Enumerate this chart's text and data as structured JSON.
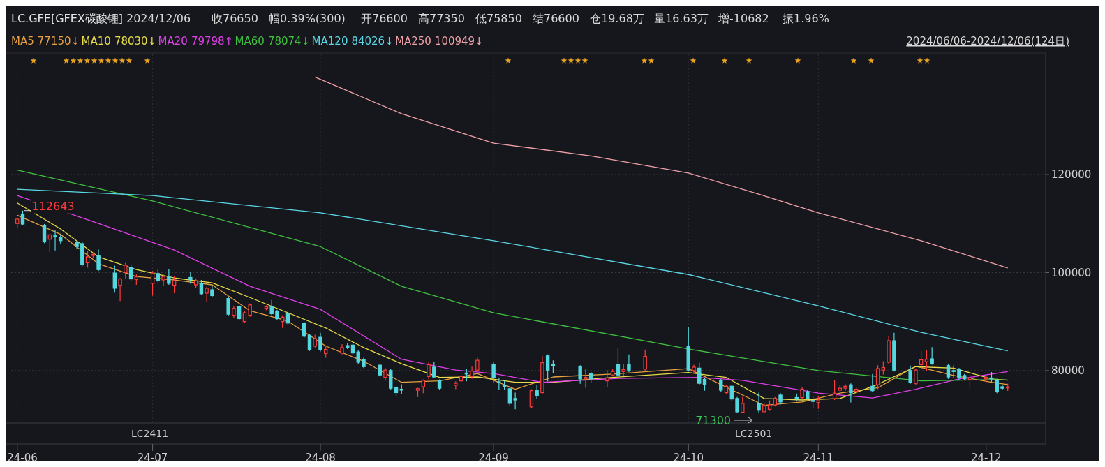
{
  "chart_data": {
    "type": "candlestick",
    "title": "LC.GFE[GFEX碳酸锂]",
    "annotations": [
      "2024/12/06",
      "收76650",
      "幅0.39%(300)",
      "开76600",
      "高77350",
      "低75850",
      "结76600",
      "仓19.68万",
      "量16.63万",
      "增-10682",
      "振1.96%",
      {
        "text": "112643",
        "x": "2024-06-07",
        "y": 112643
      },
      {
        "text": "71300",
        "x": "2024-10-21",
        "y": 71300
      },
      "2024/06/06-2024/12/06(124日)",
      "LC2411",
      "LC2501"
    ],
    "x": [
      "2024-06-06",
      "2024-06-07",
      "2024-06-11",
      "2024-06-12",
      "2024-06-13",
      "2024-06-14",
      "2024-06-17",
      "2024-06-18",
      "2024-06-19",
      "2024-06-20",
      "2024-06-21",
      "2024-06-24",
      "2024-06-25",
      "2024-06-26",
      "2024-06-27",
      "2024-06-28",
      "2024-07-01",
      "2024-07-02",
      "2024-07-03",
      "2024-07-04",
      "2024-07-05",
      "2024-07-08",
      "2024-07-09",
      "2024-07-10",
      "2024-07-11",
      "2024-07-12",
      "2024-07-15",
      "2024-07-16",
      "2024-07-17",
      "2024-07-18",
      "2024-07-19",
      "2024-07-22",
      "2024-07-23",
      "2024-07-24",
      "2024-07-25",
      "2024-07-26",
      "2024-07-29",
      "2024-07-30",
      "2024-07-31",
      "2024-08-01",
      "2024-08-02",
      "2024-08-05",
      "2024-08-06",
      "2024-08-07",
      "2024-08-08",
      "2024-08-09",
      "2024-08-12",
      "2024-08-13",
      "2024-08-14",
      "2024-08-15",
      "2024-08-16",
      "2024-08-19",
      "2024-08-20",
      "2024-08-21",
      "2024-08-22",
      "2024-08-23",
      "2024-08-26",
      "2024-08-27",
      "2024-08-28",
      "2024-08-29",
      "2024-08-30",
      "2024-09-02",
      "2024-09-03",
      "2024-09-04",
      "2024-09-05",
      "2024-09-06",
      "2024-09-09",
      "2024-09-10",
      "2024-09-11",
      "2024-09-12",
      "2024-09-13",
      "2024-09-18",
      "2024-09-19",
      "2024-09-20",
      "2024-09-23",
      "2024-09-24",
      "2024-09-25",
      "2024-09-26",
      "2024-09-27",
      "2024-09-30",
      "2024-10-08",
      "2024-10-09",
      "2024-10-10",
      "2024-10-11",
      "2024-10-14",
      "2024-10-15",
      "2024-10-16",
      "2024-10-17",
      "2024-10-18",
      "2024-10-21",
      "2024-10-22",
      "2024-10-23",
      "2024-10-24",
      "2024-10-25",
      "2024-10-28",
      "2024-10-29",
      "2024-10-30",
      "2024-10-31",
      "2024-11-01",
      "2024-11-04",
      "2024-11-05",
      "2024-11-06",
      "2024-11-07",
      "2024-11-08",
      "2024-11-11",
      "2024-11-12",
      "2024-11-13",
      "2024-11-14",
      "2024-11-15",
      "2024-11-18",
      "2024-11-19",
      "2024-11-20",
      "2024-11-21",
      "2024-11-22",
      "2024-11-25",
      "2024-11-26",
      "2024-11-27",
      "2024-11-28",
      "2024-11-29",
      "2024-12-02",
      "2024-12-03",
      "2024-12-04",
      "2024-12-05",
      "2024-12-06"
    ],
    "ohlc": [
      [
        110000,
        111200,
        109000,
        110900
      ],
      [
        111900,
        112643,
        109600,
        109900
      ],
      [
        109600,
        109900,
        106000,
        106300
      ],
      [
        106800,
        107900,
        104200,
        107700
      ],
      [
        107500,
        108700,
        104500,
        107300
      ],
      [
        107200,
        107600,
        105900,
        106500
      ],
      [
        106100,
        106400,
        104900,
        105300
      ],
      [
        105900,
        106200,
        101300,
        101700
      ],
      [
        102000,
        104300,
        101000,
        103200
      ],
      [
        103500,
        104000,
        103000,
        103700
      ],
      [
        103500,
        104700,
        100300,
        100600
      ],
      [
        99900,
        101400,
        95900,
        96800
      ],
      [
        97400,
        98900,
        94200,
        98700
      ],
      [
        100000,
        102000,
        98700,
        101500
      ],
      [
        101100,
        101700,
        98200,
        98700
      ],
      [
        98600,
        99700,
        97500,
        99100
      ],
      [
        97800,
        100300,
        95300,
        99900
      ],
      [
        99800,
        100700,
        98000,
        98300
      ],
      [
        98500,
        99600,
        97200,
        99200
      ],
      [
        99100,
        100700,
        97500,
        97800
      ],
      [
        97400,
        99300,
        95800,
        98300
      ],
      [
        99000,
        100200,
        97700,
        98600
      ],
      [
        97500,
        98800,
        96900,
        98300
      ],
      [
        97800,
        98500,
        95400,
        95700
      ],
      [
        95800,
        97100,
        94000,
        96800
      ],
      [
        96500,
        97300,
        95000,
        95300
      ],
      [
        94700,
        95000,
        91200,
        91500
      ],
      [
        91300,
        93200,
        90700,
        92700
      ],
      [
        93000,
        93300,
        90300,
        90600
      ],
      [
        90000,
        92200,
        89700,
        91800
      ],
      [
        91300,
        93700,
        91000,
        93400
      ],
      [
        92700,
        93300,
        92300,
        93000
      ],
      [
        93100,
        94400,
        91300,
        91600
      ],
      [
        92100,
        92400,
        90300,
        90600
      ],
      [
        90000,
        91300,
        88700,
        90900
      ],
      [
        91600,
        92300,
        89400,
        89700
      ],
      [
        89600,
        89900,
        86700,
        87000
      ],
      [
        87200,
        87500,
        84000,
        84300
      ],
      [
        85000,
        87300,
        84700,
        86500
      ],
      [
        86800,
        87700,
        83900,
        84200
      ],
      [
        83500,
        84900,
        82600,
        84300
      ],
      [
        83600,
        85400,
        83300,
        84700
      ],
      [
        85100,
        85600,
        84400,
        84700
      ],
      [
        85200,
        85500,
        83300,
        83600
      ],
      [
        83800,
        84100,
        81400,
        81700
      ],
      [
        82300,
        82600,
        80500,
        80800
      ],
      [
        81100,
        81400,
        78800,
        79100
      ],
      [
        78600,
        80500,
        77900,
        80100
      ],
      [
        80000,
        80400,
        76100,
        76400
      ],
      [
        76600,
        76800,
        74800,
        75500
      ],
      [
        76200,
        77200,
        75200,
        76000
      ],
      [
        76000,
        76500,
        74600,
        76300
      ],
      [
        76700,
        78200,
        75400,
        78000
      ],
      [
        78800,
        81800,
        78200,
        81200
      ],
      [
        80700,
        81700,
        78400,
        78700
      ],
      [
        78000,
        78200,
        76100,
        76400
      ],
      [
        77000,
        77800,
        76200,
        77400
      ],
      [
        77900,
        79200,
        77600,
        78800
      ],
      [
        79500,
        80300,
        77800,
        79300
      ],
      [
        78800,
        80800,
        78300,
        79900
      ],
      [
        80100,
        82700,
        79700,
        82100
      ],
      [
        81300,
        81700,
        77600,
        78500
      ],
      [
        77700,
        78500,
        76000,
        77500
      ],
      [
        77000,
        77900,
        76000,
        76800
      ],
      [
        76300,
        76700,
        72800,
        73300
      ],
      [
        74300,
        75500,
        72100,
        74000
      ],
      [
        72600,
        76200,
        72400,
        75900
      ],
      [
        75900,
        77000,
        74200,
        74900
      ],
      [
        75500,
        83000,
        75200,
        81600
      ],
      [
        83000,
        83300,
        77800,
        80100
      ],
      [
        81200,
        82100,
        79400,
        81000
      ],
      [
        80800,
        81100,
        77300,
        78300
      ],
      [
        78300,
        80400,
        76500,
        78600
      ],
      [
        79400,
        79700,
        77500,
        78300
      ],
      [
        77900,
        80100,
        76600,
        78500
      ],
      [
        79100,
        80400,
        78800,
        79800
      ],
      [
        81300,
        84600,
        78800,
        79100
      ],
      [
        79800,
        81300,
        79000,
        80200
      ],
      [
        81300,
        83300,
        79700,
        80100
      ],
      [
        80300,
        84300,
        79800,
        82900
      ],
      [
        84900,
        88800,
        79800,
        80100
      ],
      [
        80000,
        81200,
        79400,
        80700
      ],
      [
        80500,
        81600,
        77100,
        77400
      ],
      [
        78200,
        78500,
        75900,
        77100
      ],
      [
        78000,
        78300,
        75600,
        76000
      ],
      [
        75500,
        77100,
        75200,
        76800
      ],
      [
        76800,
        77100,
        73900,
        74200
      ],
      [
        74300,
        74600,
        71400,
        71600
      ],
      [
        71500,
        74600,
        71500,
        73300
      ],
      [
        73300,
        75500,
        71300,
        71900
      ],
      [
        71600,
        73300,
        71500,
        72900
      ],
      [
        72100,
        73900,
        71800,
        73000
      ],
      [
        73000,
        74600,
        72700,
        74300
      ],
      [
        75000,
        75400,
        73100,
        73600
      ],
      [
        74500,
        75300,
        73800,
        74400
      ],
      [
        74500,
        76600,
        74200,
        76200
      ],
      [
        75700,
        76000,
        74000,
        74300
      ],
      [
        73900,
        74700,
        72400,
        73700
      ],
      [
        73500,
        74900,
        72200,
        74000
      ],
      [
        74300,
        78000,
        74000,
        75400
      ],
      [
        76000,
        77100,
        75600,
        76400
      ],
      [
        76400,
        77200,
        75900,
        76800
      ],
      [
        77100,
        77400,
        73500,
        75500
      ],
      [
        75800,
        76600,
        75300,
        76200
      ],
      [
        76800,
        79300,
        75600,
        75900
      ],
      [
        77100,
        81100,
        76200,
        80400
      ],
      [
        80100,
        81900,
        79200,
        80600
      ],
      [
        81700,
        87100,
        81300,
        86100
      ],
      [
        86100,
        87700,
        79800,
        80100
      ],
      [
        80000,
        81000,
        77300,
        77600
      ],
      [
        77400,
        80400,
        77100,
        80100
      ],
      [
        81200,
        84000,
        80200,
        82200
      ],
      [
        81800,
        84200,
        79900,
        82300
      ],
      [
        82400,
        84800,
        81200,
        81500
      ],
      [
        81000,
        81300,
        78300,
        78700
      ],
      [
        80000,
        81100,
        78500,
        79800
      ],
      [
        80200,
        80500,
        78000,
        78600
      ],
      [
        79000,
        79300,
        78000,
        78300
      ],
      [
        78200,
        79200,
        76500,
        78500
      ],
      [
        78300,
        79100,
        77600,
        78600
      ],
      [
        78500,
        79700,
        77600,
        78300
      ],
      [
        78000,
        78300,
        75400,
        75700
      ],
      [
        76700,
        77000,
        76000,
        76400
      ],
      [
        76600,
        77350,
        75850,
        76650
      ]
    ],
    "colors": [
      "#ff3c3c",
      "#54d8e0",
      "#54d8e0",
      "#ff3c3c",
      "#54d8e0",
      "#54d8e0",
      "#54d8e0",
      "#54d8e0",
      "#ff3c3c",
      "#ff3c3c",
      "#54d8e0",
      "#54d8e0",
      "#ff3c3c",
      "#ff3c3c",
      "#54d8e0",
      "#ff3c3c",
      "#ff3c3c",
      "#54d8e0",
      "#ff3c3c",
      "#54d8e0",
      "#ff3c3c",
      "#54d8e0",
      "#ff3c3c",
      "#54d8e0",
      "#ff3c3c",
      "#54d8e0",
      "#54d8e0",
      "#ff3c3c",
      "#54d8e0",
      "#ff3c3c",
      "#ff3c3c",
      "#ff3c3c",
      "#54d8e0",
      "#54d8e0",
      "#ff3c3c",
      "#54d8e0",
      "#54d8e0",
      "#54d8e0",
      "#ff3c3c",
      "#54d8e0",
      "#ff3c3c",
      "#ff3c3c",
      "#54d8e0",
      "#54d8e0",
      "#54d8e0",
      "#54d8e0",
      "#54d8e0",
      "#ff3c3c",
      "#54d8e0",
      "#54d8e0",
      "#54d8e0",
      "#ff3c3c",
      "#ff3c3c",
      "#ff3c3c",
      "#54d8e0",
      "#54d8e0",
      "#ff3c3c",
      "#ff3c3c",
      "#54d8e0",
      "#ff3c3c",
      "#ff3c3c",
      "#54d8e0",
      "#54d8e0",
      "#54d8e0",
      "#54d8e0",
      "#54d8e0",
      "#ff3c3c",
      "#54d8e0",
      "#ff3c3c",
      "#54d8e0",
      "#54d8e0",
      "#54d8e0",
      "#ff3c3c",
      "#54d8e0",
      "#ff3c3c",
      "#ff3c3c",
      "#54d8e0",
      "#ff3c3c",
      "#54d8e0",
      "#ff3c3c",
      "#54d8e0",
      "#ff3c3c",
      "#54d8e0",
      "#54d8e0",
      "#54d8e0",
      "#ff3c3c",
      "#54d8e0",
      "#54d8e0",
      "#ff3c3c",
      "#54d8e0",
      "#ff3c3c",
      "#ff3c3c",
      "#ff3c3c",
      "#54d8e0",
      "#54d8e0",
      "#ff3c3c",
      "#54d8e0",
      "#54d8e0",
      "#ff3c3c",
      "#ff3c3c",
      "#ff3c3c",
      "#ff3c3c",
      "#54d8e0",
      "#ff3c3c",
      "#54d8e0",
      "#ff3c3c",
      "#ff3c3c",
      "#ff3c3c",
      "#54d8e0",
      "#54d8e0",
      "#ff3c3c",
      "#ff3c3c",
      "#ff3c3c",
      "#54d8e0",
      "#54d8e0",
      "#54d8e0",
      "#54d8e0",
      "#54d8e0",
      "#ff3c3c",
      "#ff3c3c",
      "#54d8e0",
      "#54d8e0",
      "#54d8e0",
      "#ff3c3c"
    ],
    "series": [
      {
        "type": "line",
        "name": "MA5 77150↓",
        "color": "#e8a040",
        "x": [
          "2024-06-06",
          "2024-06-14",
          "2024-06-21",
          "2024-06-28",
          "2024-07-05",
          "2024-07-12",
          "2024-07-19",
          "2024-07-26",
          "2024-08-02",
          "2024-08-09",
          "2024-08-16",
          "2024-08-23",
          "2024-08-30",
          "2024-09-06",
          "2024-09-13",
          "2024-09-24",
          "2024-10-08",
          "2024-10-15",
          "2024-10-22",
          "2024-10-29",
          "2024-11-05",
          "2024-11-12",
          "2024-11-19",
          "2024-11-26",
          "2024-12-03",
          "2024-12-06"
        ],
        "values": [
          111700,
          107800,
          101800,
          99200,
          98500,
          97500,
          92200,
          90100,
          85000,
          81900,
          77600,
          77900,
          79400,
          76200,
          78700,
          79300,
          80400,
          76600,
          72900,
          73600,
          75400,
          76500,
          80900,
          79000,
          77600,
          77150
        ]
      },
      {
        "type": "line",
        "name": "MA10 78030↓",
        "color": "#e8dc48",
        "x": [
          "2024-06-06",
          "2024-06-14",
          "2024-06-21",
          "2024-06-28",
          "2024-07-05",
          "2024-07-12",
          "2024-07-19",
          "2024-07-26",
          "2024-08-02",
          "2024-08-09",
          "2024-08-16",
          "2024-08-23",
          "2024-08-30",
          "2024-09-06",
          "2024-09-13",
          "2024-09-24",
          "2024-10-08",
          "2024-10-15",
          "2024-10-22",
          "2024-10-29",
          "2024-11-05",
          "2024-11-12",
          "2024-11-19",
          "2024-11-26",
          "2024-12-03",
          "2024-12-06"
        ],
        "values": [
          114200,
          108900,
          103200,
          100600,
          98900,
          97900,
          94900,
          91800,
          88700,
          84700,
          81400,
          78600,
          78700,
          77600,
          77600,
          78600,
          79600,
          78600,
          74300,
          74000,
          74300,
          77200,
          80800,
          80500,
          78300,
          78030
        ]
      },
      {
        "type": "line",
        "name": "MA20 79798↑",
        "color": "#e040e8",
        "x": [
          "2024-06-06",
          "2024-06-21",
          "2024-07-05",
          "2024-07-19",
          "2024-08-01",
          "2024-08-16",
          "2024-08-26",
          "2024-09-02",
          "2024-09-11",
          "2024-09-25",
          "2024-10-10",
          "2024-10-18",
          "2024-10-24",
          "2024-11-01",
          "2024-11-11",
          "2024-11-19",
          "2024-11-27",
          "2024-12-06"
        ],
        "values": [
          115700,
          110000,
          104600,
          97200,
          92500,
          82300,
          80100,
          79400,
          77600,
          78400,
          78600,
          78000,
          76900,
          75400,
          74400,
          76200,
          78300,
          79798
        ]
      },
      {
        "type": "line",
        "name": "MA60 78074↓",
        "color": "#40c040",
        "x": [
          "2024-06-06",
          "2024-07-01",
          "2024-08-01",
          "2024-08-16",
          "2024-09-02",
          "2024-10-08",
          "2024-11-01",
          "2024-11-20",
          "2024-12-03",
          "2024-12-06"
        ],
        "values": [
          120900,
          114600,
          105300,
          97200,
          91800,
          84400,
          80000,
          77900,
          78150,
          78074
        ]
      },
      {
        "type": "line",
        "name": "MA120 84026↓",
        "color": "#5ad8e6",
        "x": [
          "2024-06-06",
          "2024-07-01",
          "2024-08-01",
          "2024-09-02",
          "2024-10-08",
          "2024-11-01",
          "2024-11-20",
          "2024-12-06"
        ],
        "values": [
          117000,
          115700,
          112200,
          106500,
          99600,
          93200,
          87800,
          84026
        ]
      },
      {
        "type": "line",
        "name": "MA250 100949↓",
        "color": "#f0a0a8",
        "x": [
          "2024-07-31",
          "2024-08-16",
          "2024-09-02",
          "2024-09-20",
          "2024-10-08",
          "2024-10-21",
          "2024-11-01",
          "2024-11-20",
          "2024-12-06"
        ],
        "values": [
          139900,
          132400,
          126400,
          123800,
          120300,
          116000,
          112200,
          106500,
          100949
        ]
      }
    ],
    "xlim": [
      "2024-06-05",
      "2024-12-13"
    ],
    "xticks": [
      {
        "value": "2024-06-06",
        "label": "24-06"
      },
      {
        "value": "2024-07-01",
        "label": "24-07"
      },
      {
        "value": "2024-08-01",
        "label": "24-08"
      },
      {
        "value": "2024-09-02",
        "label": "24-09"
      },
      {
        "value": "2024-10-08",
        "label": "24-10"
      },
      {
        "value": "2024-11-01",
        "label": "24-11"
      },
      {
        "value": "2024-12-02",
        "label": "24-12"
      }
    ],
    "ylim": [
      69300,
      144500
    ],
    "yticks": [
      80000,
      100000,
      120000
    ],
    "grid": true,
    "legend": "top left"
  }
}
